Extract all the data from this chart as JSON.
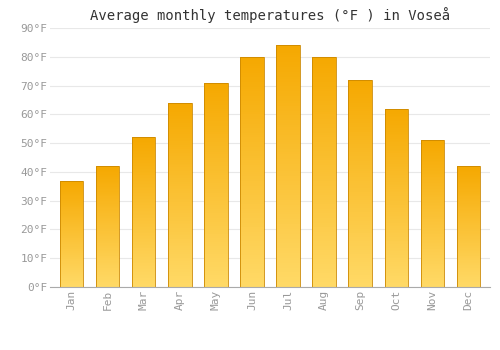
{
  "title": "Average monthly temperatures (°F ) in Voseå",
  "months": [
    "Jan",
    "Feb",
    "Mar",
    "Apr",
    "May",
    "Jun",
    "Jul",
    "Aug",
    "Sep",
    "Oct",
    "Nov",
    "Dec"
  ],
  "values": [
    37,
    42,
    52,
    64,
    71,
    80,
    84,
    80,
    72,
    62,
    51,
    42
  ],
  "bar_color_top": "#F5A800",
  "bar_color_bottom": "#FFD966",
  "bar_edge_color": "#CC8800",
  "background_color": "#FFFFFF",
  "grid_color": "#E8E8E8",
  "text_color": "#999999",
  "ylim": [
    0,
    90
  ],
  "yticks": [
    0,
    10,
    20,
    30,
    40,
    50,
    60,
    70,
    80,
    90
  ],
  "title_fontsize": 10,
  "tick_fontsize": 8,
  "bar_width": 0.65
}
